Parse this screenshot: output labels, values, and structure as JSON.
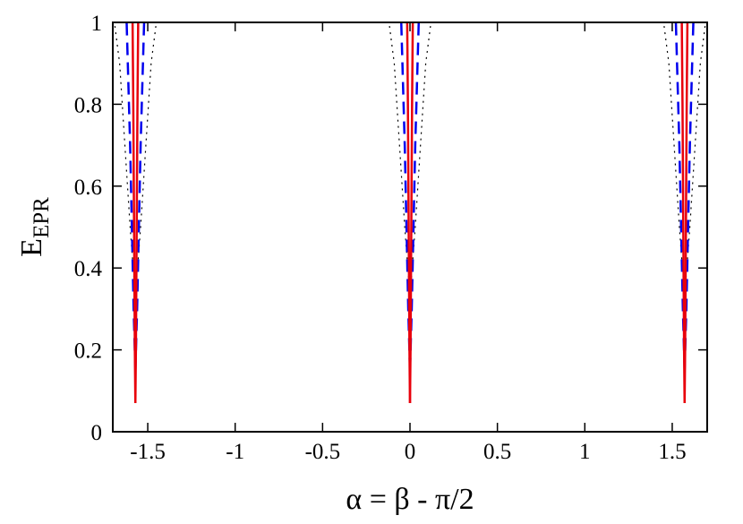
{
  "chart_data": {
    "type": "line",
    "title": "",
    "xlabel": "α = β - π/2",
    "ylabel": {
      "main": "E",
      "subscript": "EPR"
    },
    "xlim": [
      -1.7,
      1.7
    ],
    "ylim": [
      0,
      1
    ],
    "x_ticks": [
      -1.5,
      -1,
      -0.5,
      0,
      0.5,
      1,
      1.5
    ],
    "x_tick_labels": [
      "-1.5",
      "-1",
      "-0.5",
      "0",
      "0.5",
      "1",
      "1.5"
    ],
    "y_ticks": [
      0,
      0.2,
      0.4,
      0.6,
      0.8,
      1
    ],
    "y_tick_labels": [
      "0",
      "0.2",
      "0.4",
      "0.6",
      "0.8",
      "1"
    ],
    "grid": false,
    "legend": "none",
    "centers": [
      -1.5708,
      0,
      1.5708
    ],
    "series": [
      {
        "style": "solid",
        "color": "#e8000b",
        "x_offset": [
          0,
          0.003,
          0.006,
          0.009,
          0.012,
          0.016
        ],
        "y": [
          0.07,
          0.2,
          0.4,
          0.6,
          0.8,
          1.0
        ]
      },
      {
        "style": "dashed",
        "color": "#0000ee",
        "x_offset": [
          0,
          0.01,
          0.02,
          0.03,
          0.04,
          0.05
        ],
        "y": [
          0.15,
          0.3,
          0.5,
          0.7,
          0.85,
          1.0
        ]
      },
      {
        "style": "dotted",
        "color": "#000000",
        "x_offset": [
          0,
          0.03,
          0.06,
          0.09,
          0.12
        ],
        "y": [
          0.33,
          0.5,
          0.7,
          0.9,
          1.0
        ]
      }
    ]
  }
}
